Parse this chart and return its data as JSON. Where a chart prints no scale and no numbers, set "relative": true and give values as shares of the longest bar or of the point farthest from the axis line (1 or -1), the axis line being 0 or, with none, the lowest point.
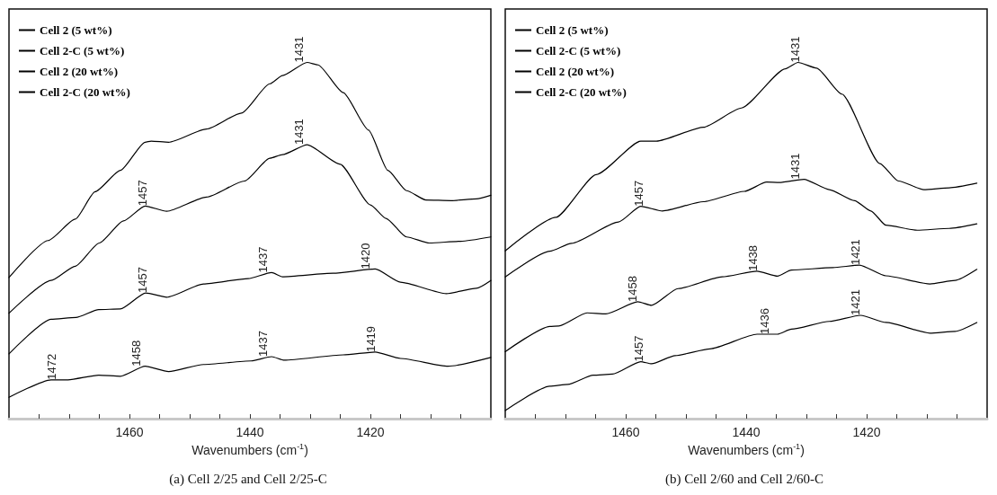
{
  "chart_data": [
    {
      "type": "line",
      "title": "(a) Cell 2/25 and Cell 2/25-C",
      "xlabel": "Wavenumbers (cm$^{-1}$)",
      "relative": true,
      "xlim": [
        1480,
        1400
      ],
      "xticks": [
        {
          "value": 1475,
          "label": null
        },
        {
          "value": 1470,
          "label": null
        },
        {
          "value": 1465,
          "label": null
        },
        1460,
        {
          "value": 1455,
          "label": null
        },
        {
          "value": 1450,
          "label": null
        },
        {
          "value": 1445,
          "label": null
        },
        1440,
        {
          "value": 1435,
          "label": null
        },
        {
          "value": 1430,
          "label": null
        },
        {
          "value": 1425,
          "label": null
        },
        1420,
        {
          "value": 1415,
          "label": null
        },
        {
          "value": 1410,
          "label": null
        },
        {
          "value": 1405,
          "label": null
        }
      ],
      "grid": false,
      "legend": "top left",
      "marker": "none",
      "line_style": "solid",
      "tick_labels": "x",
      "series": [
        {
          "name": "Cell 2 (5 wt%)",
          "color": "#000000",
          "x": [
            1480,
            1473.5,
            1469,
            1465.7,
            1461.5,
            1457.4,
            1456.4,
            1453.5,
            1447.2,
            1441.4,
            1436.7,
            1434.6,
            1430.5,
            1428.7,
            1424.5,
            1420.3,
            1417.1,
            1414,
            1410.8,
            1406.6,
            1402.4,
            1400
          ],
          "values": [
            0.396,
            0.5,
            0.56,
            0.637,
            0.697,
            0.776,
            0.779,
            0.776,
            0.813,
            0.858,
            0.94,
            0.963,
            1.0,
            0.993,
            0.915,
            0.81,
            0.697,
            0.64,
            0.614,
            0.612,
            0.617,
            0.627
          ]
        },
        {
          "name": "Cell 2-C (5 wt%)",
          "color": "#000000",
          "x": [
            1480,
            1473,
            1469,
            1465,
            1461,
            1457.4,
            1453.8,
            1447.2,
            1440.9,
            1436.7,
            1434.6,
            1430.5,
            1425,
            1420,
            1417.4,
            1414,
            1410.2,
            1405,
            1400
          ],
          "values": [
            0.296,
            0.388,
            0.428,
            0.493,
            0.555,
            0.597,
            0.582,
            0.622,
            0.667,
            0.731,
            0.741,
            0.769,
            0.714,
            0.6,
            0.562,
            0.51,
            0.493,
            0.498,
            0.51
          ]
        },
        {
          "name": "Cell 2 (20 wt%)",
          "color": "#000000",
          "x": [
            1480,
            1473,
            1468.9,
            1465.1,
            1461.5,
            1457.3,
            1453.8,
            1447.7,
            1440.3,
            1436.4,
            1434.6,
            1426.2,
            1419.2,
            1415,
            1407.4,
            1402.4,
            1400
          ],
          "values": [
            0.182,
            0.279,
            0.284,
            0.306,
            0.308,
            0.353,
            0.341,
            0.378,
            0.393,
            0.41,
            0.398,
            0.408,
            0.42,
            0.383,
            0.351,
            0.366,
            0.388
          ]
        },
        {
          "name": "Cell 2-C (20 wt%)",
          "color": "#000000",
          "x": [
            1480,
            1473,
            1470.2,
            1465.1,
            1461.5,
            1457.4,
            1453.5,
            1447.7,
            1439.8,
            1436.4,
            1434.3,
            1424.5,
            1419.2,
            1415,
            1407.1,
            1400
          ],
          "values": [
            0.06,
            0.109,
            0.109,
            0.122,
            0.119,
            0.147,
            0.132,
            0.152,
            0.162,
            0.174,
            0.164,
            0.179,
            0.187,
            0.169,
            0.147,
            0.172
          ]
        }
      ],
      "annotations": [
        {
          "text": "1431",
          "x": 1431,
          "y": 1.0
        },
        {
          "text": "1457",
          "x": 1457,
          "y": 0.597
        },
        {
          "text": "1431",
          "x": 1431,
          "y": 0.769
        },
        {
          "text": "1457",
          "x": 1457,
          "y": 0.353
        },
        {
          "text": "1437",
          "x": 1437,
          "y": 0.41
        },
        {
          "text": "1420",
          "x": 1420,
          "y": 0.42
        },
        {
          "text": "1472",
          "x": 1472,
          "y": 0.109
        },
        {
          "text": "1458",
          "x": 1458,
          "y": 0.147
        },
        {
          "text": "1437",
          "x": 1437,
          "y": 0.174
        },
        {
          "text": "1419",
          "x": 1419,
          "y": 0.187
        }
      ]
    },
    {
      "type": "line",
      "title": "(b) Cell 2/60 and Cell 2/60-C",
      "xlabel": "Wavenumbers (cm$^{-1}$)",
      "relative": true,
      "xlim": [
        1480,
        1400
      ],
      "xticks": [
        {
          "value": 1475,
          "label": null
        },
        {
          "value": 1470,
          "label": null
        },
        {
          "value": 1465,
          "label": null
        },
        1460,
        {
          "value": 1455,
          "label": null
        },
        {
          "value": 1450,
          "label": null
        },
        {
          "value": 1445,
          "label": null
        },
        1440,
        {
          "value": 1435,
          "label": null
        },
        {
          "value": 1430,
          "label": null
        },
        {
          "value": 1425,
          "label": null
        },
        1420,
        {
          "value": 1415,
          "label": null
        },
        {
          "value": 1410,
          "label": null
        },
        {
          "value": 1405,
          "label": null
        }
      ],
      "grid": false,
      "legend": "top left",
      "marker": "none",
      "line_style": "solid",
      "tick_labels": "x",
      "series": [
        {
          "name": "Cell 2 (5 wt%)",
          "color": "#000000",
          "x": [
            1480,
            1471.6,
            1464.9,
            1457.5,
            1454.9,
            1447.1,
            1440.8,
            1433.5,
            1431.4,
            1428.3,
            1424.1,
            1417.8,
            1414.7,
            1410.5,
            1406.3,
            1401.7
          ],
          "values": [
            0.471,
            0.565,
            0.685,
            0.779,
            0.779,
            0.818,
            0.872,
            0.982,
            1.0,
            0.984,
            0.911,
            0.716,
            0.667,
            0.643,
            0.648,
            0.661
          ]
        },
        {
          "name": "Cell 2-C (5 wt%)",
          "color": "#000000",
          "x": [
            1480,
            1472.6,
            1469,
            1461.2,
            1457.5,
            1453.9,
            1447.1,
            1440.3,
            1436.6,
            1434.5,
            1430.4,
            1426.2,
            1422,
            1419.3,
            1416.8,
            1411.6,
            1406.3,
            1401.7
          ],
          "values": [
            0.398,
            0.47,
            0.492,
            0.552,
            0.596,
            0.583,
            0.609,
            0.638,
            0.664,
            0.663,
            0.672,
            0.643,
            0.612,
            0.583,
            0.543,
            0.529,
            0.534,
            0.547
          ]
        },
        {
          "name": "Cell 2 (20 wt%)",
          "color": "#000000",
          "x": [
            1480,
            1472.6,
            1471.1,
            1466.4,
            1463.3,
            1458,
            1455.7,
            1451.3,
            1444,
            1438.2,
            1434.8,
            1432.5,
            1425.6,
            1421.2,
            1416.8,
            1409.5,
            1405.3,
            1401.7
          ],
          "values": [
            0.188,
            0.259,
            0.26,
            0.297,
            0.294,
            0.328,
            0.318,
            0.365,
            0.398,
            0.414,
            0.4,
            0.417,
            0.424,
            0.431,
            0.401,
            0.378,
            0.388,
            0.419
          ]
        },
        {
          "name": "Cell 2-C (20 wt%)",
          "color": "#000000",
          "x": [
            1480,
            1472.6,
            1469.6,
            1465.4,
            1462.2,
            1457.5,
            1455.7,
            1451.8,
            1446,
            1438.2,
            1434.8,
            1432.5,
            1426.2,
            1421,
            1416.8,
            1409.5,
            1405.3,
            1401.7
          ],
          "values": [
            0.023,
            0.091,
            0.096,
            0.122,
            0.125,
            0.16,
            0.154,
            0.177,
            0.196,
            0.237,
            0.237,
            0.251,
            0.273,
            0.29,
            0.27,
            0.24,
            0.245,
            0.27
          ]
        }
      ],
      "annotations": [
        {
          "text": "1431",
          "x": 1431,
          "y": 1.0
        },
        {
          "text": "1457",
          "x": 1457,
          "y": 0.596
        },
        {
          "text": "1431",
          "x": 1431,
          "y": 0.672
        },
        {
          "text": "1458",
          "x": 1458,
          "y": 0.328
        },
        {
          "text": "1438",
          "x": 1438,
          "y": 0.414
        },
        {
          "text": "1421",
          "x": 1421,
          "y": 0.431
        },
        {
          "text": "1457",
          "x": 1457,
          "y": 0.16
        },
        {
          "text": "1436",
          "x": 1436,
          "y": 0.237
        },
        {
          "text": "1421",
          "x": 1421,
          "y": 0.29
        }
      ]
    }
  ]
}
